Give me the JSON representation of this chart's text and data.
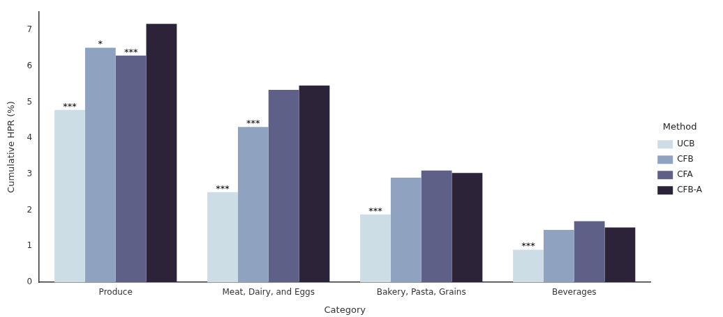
{
  "chart_data": {
    "type": "bar",
    "xlabel": "Category",
    "ylabel": "Cumulative HPR (%)",
    "legend_title": "Method",
    "legend": "right",
    "grid": false,
    "categories": [
      "Produce",
      "Meat, Dairy, and Eggs",
      "Bakery, Pasta, Grains",
      "Beverages"
    ],
    "ylim": [
      0,
      7.5
    ],
    "yticks": [
      0,
      1,
      2,
      3,
      4,
      5,
      6,
      7
    ],
    "series": [
      {
        "name": "UCB",
        "color": "#ccdde6",
        "values": [
          4.78,
          2.5,
          1.88,
          0.9
        ],
        "value_labels": [
          "***",
          "***",
          "***",
          "***"
        ]
      },
      {
        "name": "CFB",
        "color": "#8fa3c0",
        "values": [
          6.51,
          4.31,
          2.9,
          1.45
        ],
        "value_labels": [
          "*",
          "***",
          null,
          null
        ]
      },
      {
        "name": "CFA",
        "color": "#5e6088",
        "values": [
          6.29,
          5.34,
          3.1,
          1.69
        ],
        "value_labels": [
          "***",
          null,
          null,
          null
        ]
      },
      {
        "name": "CFB-A",
        "color": "#2c2339",
        "values": [
          7.17,
          5.46,
          3.03,
          1.52
        ]
      }
    ]
  }
}
